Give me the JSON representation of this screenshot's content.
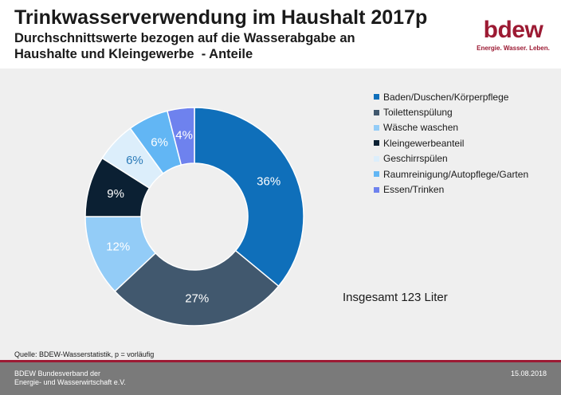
{
  "title": "Trinkwasserverwendung im Haushalt 2017p",
  "subtitle_lines": [
    "Durchschnittswerte bezogen auf die Wasserabgabe an",
    "Haushalte und Kleingewerbe  - Anteile"
  ],
  "logo": {
    "word": "bdew",
    "tagline": "Energie. Wasser. Leben.",
    "color": "#9c1a33"
  },
  "chart_data": {
    "type": "pie",
    "subtype": "donut",
    "title": "",
    "categories": [
      "Baden/Duschen/Körperpflege",
      "Toilettenspülung",
      "Wäsche waschen",
      "Kleingewerbeanteil",
      "Geschirrspülen",
      "Raumreinigung/Autopflege/Garten",
      "Essen/Trinken"
    ],
    "values": [
      36,
      27,
      12,
      9,
      6,
      6,
      4
    ],
    "labels": [
      "36%",
      "27%",
      "12%",
      "9%",
      "6%",
      "6%",
      "4%"
    ],
    "colors": [
      "#0f6fba",
      "#41586e",
      "#93ccf7",
      "#0b2033",
      "#dceefb",
      "#62b6f4",
      "#6e82ee"
    ],
    "label_colors": [
      "#ffffff",
      "#ffffff",
      "#ffffff",
      "#ffffff",
      "#2a7ab8",
      "#ffffff",
      "#ffffff"
    ],
    "legend_position": "right"
  },
  "total_text": "Insgesamt 123 Liter",
  "source_text": "Quelle: BDEW-Wasserstatistik, p = vorläufig",
  "footer": {
    "org_lines": [
      "BDEW Bundesverband der",
      "Energie- und Wasserwirtschaft e.V."
    ],
    "date": "15.08.2018"
  }
}
